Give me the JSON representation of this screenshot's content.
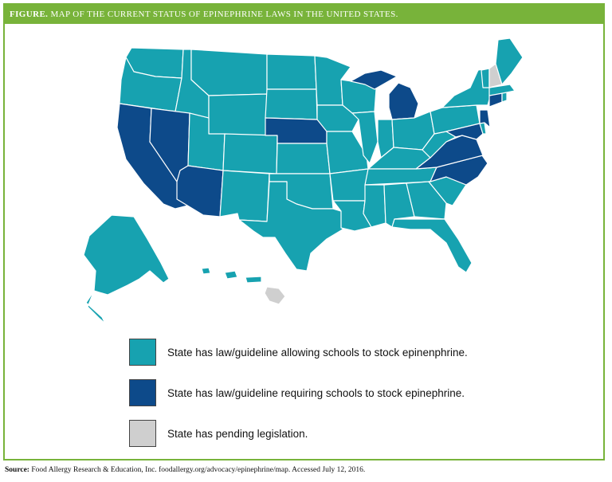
{
  "figure": {
    "title_prefix": "FIGURE.",
    "title_text": "MAP OF THE CURRENT STATUS OF EPINEPHRINE LAWS IN THE UNITED STATES."
  },
  "colors": {
    "allowing": "#17a2b0",
    "requiring": "#0d4a8a",
    "pending": "#cfcfcf",
    "border": "#78b33a"
  },
  "legend": {
    "items": [
      {
        "key": "allowing",
        "label": "State has law/guideline allowing schools to stock epinenphrine."
      },
      {
        "key": "requiring",
        "label": "State has law/guideline requiring schools to stock epinephrine."
      },
      {
        "key": "pending",
        "label": "State has pending legislation."
      }
    ]
  },
  "map_status": {
    "requiring": [
      "California",
      "Nevada",
      "Arizona",
      "Nebraska",
      "Michigan",
      "Virginia",
      "North Carolina",
      "New Jersey",
      "Connecticut",
      "Maryland"
    ],
    "pending": [
      "New Hampshire",
      "Hawaii"
    ],
    "allowing": "all other states"
  },
  "source": {
    "label": "Source:",
    "text": "Food Allergy Research & Education, Inc. foodallergy.org/advocacy/epinephrine/map. Accessed July 12, 2016."
  }
}
